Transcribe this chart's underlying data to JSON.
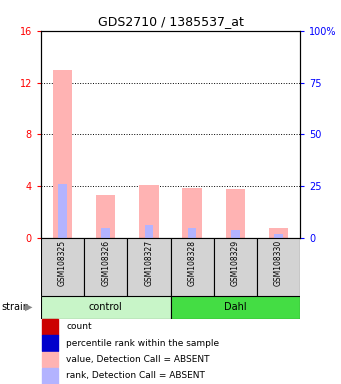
{
  "title": "GDS2710 / 1385537_at",
  "samples": [
    "GSM108325",
    "GSM108326",
    "GSM108327",
    "GSM108328",
    "GSM108329",
    "GSM108330"
  ],
  "group_colors": [
    "#c8f5c8",
    "#44dd44"
  ],
  "value_absent": [
    13.0,
    3.3,
    4.1,
    3.9,
    3.8,
    0.8
  ],
  "rank_absent": [
    4.2,
    0.8,
    1.0,
    0.8,
    0.65,
    0.3
  ],
  "ylim_left": [
    0,
    16
  ],
  "ylim_right": [
    0,
    100
  ],
  "yticks_left": [
    0,
    4,
    8,
    12,
    16
  ],
  "yticks_right": [
    0,
    25,
    50,
    75,
    100
  ],
  "yticklabels_right": [
    "0",
    "25",
    "50",
    "75",
    "100%"
  ],
  "value_absent_color": "#ffb3b3",
  "rank_absent_color": "#b3b3ff",
  "bg_color": "#d3d3d3",
  "legend_items": [
    {
      "color": "#cc0000",
      "label": "count"
    },
    {
      "color": "#0000cc",
      "label": "percentile rank within the sample"
    },
    {
      "color": "#ffb3b3",
      "label": "value, Detection Call = ABSENT"
    },
    {
      "color": "#b3b3ff",
      "label": "rank, Detection Call = ABSENT"
    }
  ]
}
